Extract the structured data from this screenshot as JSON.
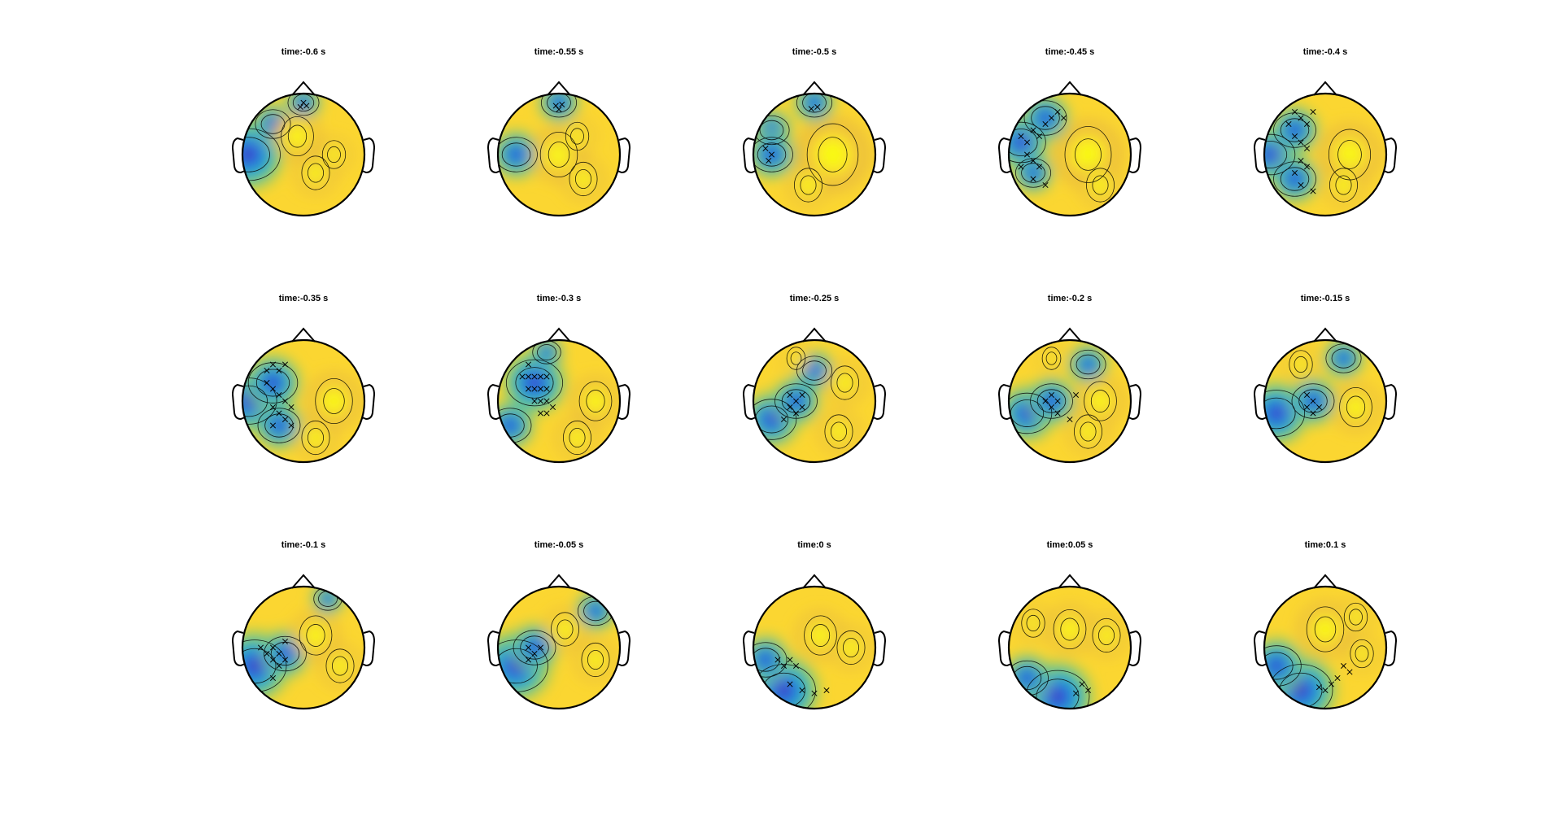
{
  "chart_data": {
    "type": "heatmap",
    "subtype": "topoplot-grid",
    "layout": {
      "rows": 3,
      "cols": 5
    },
    "colormap": [
      "#3e26a8",
      "#2e61f4",
      "#139fd1",
      "#24bfb0",
      "#8ecc5c",
      "#e8ba3c",
      "#fbd631",
      "#f9fb0e"
    ],
    "outline_color": "#000000",
    "panels": [
      {
        "title": "time:-0.6 s",
        "time": -0.6,
        "low_regions": [
          [
            0.0,
            0.85,
            0.22
          ],
          [
            -0.9,
            0.0,
            0.45
          ],
          [
            -0.5,
            0.5,
            0.25
          ]
        ],
        "high_regions": [
          [
            -0.1,
            0.3,
            0.35
          ],
          [
            0.2,
            -0.3,
            0.3
          ],
          [
            0.5,
            0.0,
            0.25
          ]
        ],
        "markers": [
          [
            0.0,
            0.85
          ],
          [
            -0.05,
            0.78
          ],
          [
            0.05,
            0.8
          ]
        ]
      },
      {
        "title": "time:-0.55 s",
        "time": -0.55,
        "low_regions": [
          [
            0.0,
            0.85,
            0.25
          ],
          [
            -0.7,
            0.0,
            0.3
          ]
        ],
        "high_regions": [
          [
            0.0,
            0.0,
            0.4
          ],
          [
            0.4,
            -0.4,
            0.3
          ],
          [
            0.3,
            0.3,
            0.25
          ]
        ],
        "markers": [
          [
            -0.05,
            0.8
          ],
          [
            0.05,
            0.82
          ],
          [
            0.0,
            0.74
          ]
        ]
      },
      {
        "title": "time:-0.5 s",
        "time": -0.5,
        "low_regions": [
          [
            0.0,
            0.85,
            0.25
          ],
          [
            -0.7,
            0.4,
            0.25
          ],
          [
            -0.7,
            0.0,
            0.3
          ]
        ],
        "high_regions": [
          [
            0.3,
            0.0,
            0.55
          ],
          [
            -0.1,
            -0.5,
            0.3
          ]
        ],
        "markers": [
          [
            -0.8,
            0.1
          ],
          [
            -0.7,
            0.0
          ],
          [
            -0.75,
            -0.1
          ],
          [
            -0.05,
            0.75
          ],
          [
            0.05,
            0.78
          ]
        ]
      },
      {
        "title": "time:-0.45 s",
        "time": -0.45,
        "low_regions": [
          [
            -0.8,
            0.2,
            0.35
          ],
          [
            -0.4,
            0.6,
            0.3
          ],
          [
            -0.6,
            -0.3,
            0.25
          ]
        ],
        "high_regions": [
          [
            0.3,
            0.0,
            0.5
          ],
          [
            0.5,
            -0.5,
            0.3
          ]
        ],
        "markers": [
          [
            -0.8,
            0.3
          ],
          [
            -0.7,
            0.2
          ],
          [
            -0.6,
            0.4
          ],
          [
            -0.5,
            0.3
          ],
          [
            -0.4,
            0.5
          ],
          [
            -0.3,
            0.6
          ],
          [
            -0.7,
            0.0
          ],
          [
            -0.6,
            -0.1
          ],
          [
            -0.5,
            -0.2
          ],
          [
            -0.6,
            -0.4
          ],
          [
            -0.4,
            -0.5
          ],
          [
            -0.2,
            0.7
          ],
          [
            -0.1,
            0.6
          ],
          [
            -0.8,
            -0.2
          ]
        ]
      },
      {
        "title": "time:-0.4 s",
        "time": -0.4,
        "low_regions": [
          [
            -0.9,
            0.0,
            0.35
          ],
          [
            -0.5,
            0.4,
            0.3
          ],
          [
            -0.5,
            -0.4,
            0.3
          ]
        ],
        "high_regions": [
          [
            0.4,
            0.0,
            0.45
          ],
          [
            0.3,
            -0.5,
            0.3
          ]
        ],
        "markers": [
          [
            -0.5,
            0.7
          ],
          [
            -0.4,
            0.6
          ],
          [
            -0.3,
            0.5
          ],
          [
            -0.5,
            0.3
          ],
          [
            -0.4,
            0.2
          ],
          [
            -0.3,
            0.1
          ],
          [
            -0.4,
            -0.1
          ],
          [
            -0.3,
            -0.2
          ],
          [
            -0.5,
            -0.3
          ],
          [
            -0.4,
            -0.5
          ],
          [
            -0.2,
            -0.6
          ],
          [
            -0.6,
            0.5
          ],
          [
            -0.2,
            0.7
          ]
        ]
      },
      {
        "title": "time:-0.35 s",
        "time": -0.35,
        "low_regions": [
          [
            -0.9,
            0.0,
            0.4
          ],
          [
            -0.5,
            0.3,
            0.35
          ],
          [
            -0.4,
            -0.4,
            0.3
          ]
        ],
        "high_regions": [
          [
            0.5,
            0.0,
            0.4
          ],
          [
            0.2,
            -0.6,
            0.3
          ]
        ],
        "markers": [
          [
            -0.6,
            0.5
          ],
          [
            -0.5,
            0.6
          ],
          [
            -0.4,
            0.5
          ],
          [
            -0.3,
            0.6
          ],
          [
            -0.6,
            0.3
          ],
          [
            -0.5,
            0.2
          ],
          [
            -0.4,
            0.1
          ],
          [
            -0.3,
            0.0
          ],
          [
            -0.5,
            -0.1
          ],
          [
            -0.4,
            -0.2
          ],
          [
            -0.3,
            -0.3
          ],
          [
            -0.2,
            -0.1
          ],
          [
            -0.5,
            -0.4
          ],
          [
            -0.2,
            -0.4
          ]
        ]
      },
      {
        "title": "time:-0.3 s",
        "time": -0.3,
        "low_regions": [
          [
            -0.4,
            0.3,
            0.4
          ],
          [
            -0.8,
            -0.4,
            0.3
          ],
          [
            -0.2,
            0.8,
            0.2
          ]
        ],
        "high_regions": [
          [
            0.6,
            0.0,
            0.35
          ],
          [
            0.3,
            -0.6,
            0.3
          ]
        ],
        "markers": [
          [
            -0.6,
            0.4
          ],
          [
            -0.5,
            0.4
          ],
          [
            -0.4,
            0.4
          ],
          [
            -0.3,
            0.4
          ],
          [
            -0.2,
            0.4
          ],
          [
            -0.5,
            0.2
          ],
          [
            -0.4,
            0.2
          ],
          [
            -0.3,
            0.2
          ],
          [
            -0.2,
            0.2
          ],
          [
            -0.4,
            0.0
          ],
          [
            -0.3,
            0.0
          ],
          [
            -0.2,
            0.0
          ],
          [
            -0.3,
            -0.2
          ],
          [
            -0.2,
            -0.2
          ],
          [
            -0.1,
            -0.1
          ],
          [
            -0.5,
            0.6
          ]
        ]
      },
      {
        "title": "time:-0.25 s",
        "time": -0.25,
        "low_regions": [
          [
            -0.7,
            -0.3,
            0.35
          ],
          [
            -0.3,
            0.0,
            0.3
          ],
          [
            0.0,
            0.5,
            0.25
          ]
        ],
        "high_regions": [
          [
            0.5,
            0.3,
            0.3
          ],
          [
            0.4,
            -0.5,
            0.3
          ],
          [
            -0.3,
            0.7,
            0.2
          ]
        ],
        "markers": [
          [
            -0.4,
            0.1
          ],
          [
            -0.3,
            0.0
          ],
          [
            -0.2,
            -0.1
          ],
          [
            -0.3,
            -0.2
          ],
          [
            -0.4,
            -0.1
          ],
          [
            -0.2,
            0.1
          ],
          [
            -0.5,
            -0.3
          ]
        ]
      },
      {
        "title": "time:-0.2 s",
        "time": -0.2,
        "low_regions": [
          [
            -0.7,
            -0.2,
            0.35
          ],
          [
            -0.3,
            0.0,
            0.3
          ],
          [
            0.3,
            0.6,
            0.25
          ]
        ],
        "high_regions": [
          [
            0.5,
            0.0,
            0.35
          ],
          [
            0.3,
            -0.5,
            0.3
          ],
          [
            -0.3,
            0.7,
            0.2
          ]
        ],
        "markers": [
          [
            -0.4,
            0.0
          ],
          [
            -0.3,
            -0.1
          ],
          [
            -0.2,
            0.0
          ],
          [
            -0.3,
            0.1
          ],
          [
            -0.2,
            -0.2
          ],
          [
            0.0,
            -0.3
          ],
          [
            0.1,
            0.1
          ]
        ]
      },
      {
        "title": "time:-0.15 s",
        "time": -0.15,
        "low_regions": [
          [
            -0.8,
            -0.2,
            0.4
          ],
          [
            -0.2,
            0.0,
            0.3
          ],
          [
            0.3,
            0.7,
            0.25
          ]
        ],
        "high_regions": [
          [
            0.5,
            -0.1,
            0.35
          ],
          [
            -0.4,
            0.6,
            0.25
          ]
        ],
        "markers": [
          [
            -0.3,
            0.1
          ],
          [
            -0.2,
            0.0
          ],
          [
            -0.1,
            -0.1
          ],
          [
            -0.2,
            -0.2
          ],
          [
            -0.3,
            -0.1
          ]
        ]
      },
      {
        "title": "time:-0.1 s",
        "time": -0.1,
        "low_regions": [
          [
            -0.8,
            -0.3,
            0.45
          ],
          [
            -0.3,
            -0.1,
            0.3
          ],
          [
            0.4,
            0.8,
            0.2
          ]
        ],
        "high_regions": [
          [
            0.2,
            0.2,
            0.35
          ],
          [
            0.6,
            -0.3,
            0.3
          ]
        ],
        "markers": [
          [
            -0.7,
            0.0
          ],
          [
            -0.6,
            -0.1
          ],
          [
            -0.5,
            0.0
          ],
          [
            -0.4,
            -0.1
          ],
          [
            -0.5,
            -0.2
          ],
          [
            -0.4,
            -0.3
          ],
          [
            -0.3,
            -0.2
          ],
          [
            -0.3,
            0.1
          ],
          [
            -0.5,
            -0.5
          ]
        ]
      },
      {
        "title": "time:-0.05 s",
        "time": -0.05,
        "low_regions": [
          [
            -0.7,
            -0.3,
            0.45
          ],
          [
            -0.4,
            0.0,
            0.3
          ],
          [
            0.6,
            0.6,
            0.25
          ]
        ],
        "high_regions": [
          [
            0.1,
            0.3,
            0.3
          ],
          [
            0.6,
            -0.2,
            0.3
          ]
        ],
        "markers": [
          [
            -0.5,
            0.0
          ],
          [
            -0.4,
            -0.1
          ],
          [
            -0.5,
            -0.2
          ],
          [
            -0.3,
            0.0
          ]
        ]
      },
      {
        "title": "time:0 s",
        "time": 0.0,
        "low_regions": [
          [
            -0.5,
            -0.7,
            0.45
          ],
          [
            -0.8,
            -0.2,
            0.3
          ]
        ],
        "high_regions": [
          [
            0.1,
            0.2,
            0.35
          ],
          [
            0.6,
            0.0,
            0.3
          ]
        ],
        "markers": [
          [
            -0.6,
            -0.2
          ],
          [
            -0.5,
            -0.3
          ],
          [
            -0.4,
            -0.2
          ],
          [
            -0.3,
            -0.3
          ],
          [
            -0.4,
            -0.6
          ],
          [
            -0.2,
            -0.7
          ],
          [
            0.0,
            -0.75
          ],
          [
            0.2,
            -0.7
          ]
        ]
      },
      {
        "title": "time:0.05 s",
        "time": 0.05,
        "low_regions": [
          [
            -0.2,
            -0.8,
            0.45
          ],
          [
            -0.7,
            -0.5,
            0.3
          ]
        ],
        "high_regions": [
          [
            0.0,
            0.3,
            0.35
          ],
          [
            0.6,
            0.2,
            0.3
          ],
          [
            -0.6,
            0.4,
            0.25
          ]
        ],
        "markers": [
          [
            0.2,
            -0.6
          ],
          [
            0.3,
            -0.7
          ],
          [
            0.1,
            -0.75
          ]
        ]
      },
      {
        "title": "time:0.1 s",
        "time": 0.1,
        "low_regions": [
          [
            -0.4,
            -0.7,
            0.45
          ],
          [
            -0.8,
            -0.3,
            0.35
          ]
        ],
        "high_regions": [
          [
            0.0,
            0.3,
            0.4
          ],
          [
            0.5,
            0.5,
            0.25
          ],
          [
            0.6,
            -0.1,
            0.25
          ]
        ],
        "markers": [
          [
            0.3,
            -0.3
          ],
          [
            0.4,
            -0.4
          ],
          [
            0.2,
            -0.5
          ],
          [
            0.1,
            -0.6
          ],
          [
            -0.1,
            -0.65
          ],
          [
            0.0,
            -0.7
          ]
        ]
      }
    ]
  }
}
